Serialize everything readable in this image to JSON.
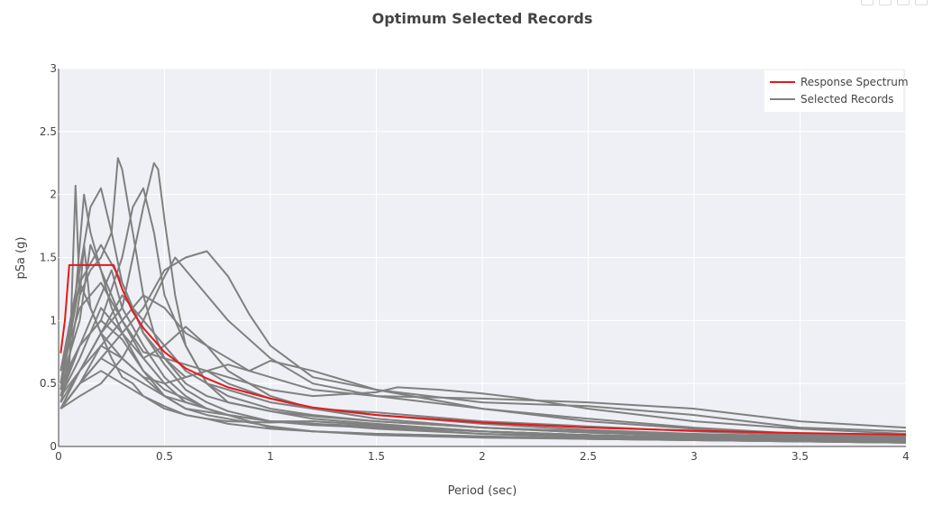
{
  "chart_data": {
    "type": "line",
    "title": "Optimum Selected Records",
    "xlabel": "Period (sec)",
    "ylabel": "pSa (g)",
    "xlim": [
      0,
      4
    ],
    "ylim": [
      0,
      3
    ],
    "xticks": [
      0,
      0.5,
      1,
      1.5,
      2,
      2.5,
      3,
      3.5,
      4
    ],
    "xtick_labels": [
      "0",
      "0.5",
      "1",
      "1.5",
      "2",
      "2.5",
      "3",
      "3.5",
      "4"
    ],
    "yticks": [
      0,
      0.5,
      1,
      1.5,
      2,
      2.5,
      3
    ],
    "ytick_labels": [
      "0",
      "0.5",
      "1",
      "1.5",
      "2",
      "2.5",
      "3"
    ],
    "grid": true,
    "legend_position": "top-right",
    "legend": [
      {
        "name": "Response Spectrum",
        "color": "#e31a1c"
      },
      {
        "name": "Selected Records",
        "color": "#808080"
      }
    ],
    "colors": {
      "response": "#e31a1c",
      "records": "#808080",
      "plot_bg": "#eff0f5",
      "grid": "#ffffff"
    },
    "response_spectrum": {
      "x": [
        0.01,
        0.03,
        0.05,
        0.1,
        0.15,
        0.2,
        0.26,
        0.3,
        0.35,
        0.4,
        0.5,
        0.6,
        0.7,
        0.8,
        1.0,
        1.2,
        1.5,
        2.0,
        2.5,
        3.0,
        3.5,
        4.0
      ],
      "y": [
        0.74,
        1.0,
        1.44,
        1.44,
        1.44,
        1.44,
        1.44,
        1.25,
        1.07,
        0.94,
        0.75,
        0.62,
        0.54,
        0.47,
        0.38,
        0.31,
        0.25,
        0.19,
        0.15,
        0.125,
        0.107,
        0.094
      ]
    },
    "records": [
      {
        "x": [
          0.01,
          0.05,
          0.08,
          0.1,
          0.12,
          0.15,
          0.2,
          0.25,
          0.3,
          0.35,
          0.4,
          0.5,
          0.6,
          0.7,
          0.8,
          1.0,
          1.2,
          1.5,
          2.0,
          2.5,
          3.0,
          3.5,
          4.0
        ],
        "y": [
          0.35,
          0.6,
          2.07,
          1.2,
          1.6,
          1.1,
          0.9,
          0.7,
          0.55,
          0.5,
          0.4,
          0.32,
          0.25,
          0.22,
          0.18,
          0.14,
          0.12,
          0.09,
          0.07,
          0.06,
          0.05,
          0.04,
          0.03
        ]
      },
      {
        "x": [
          0.01,
          0.05,
          0.1,
          0.15,
          0.2,
          0.25,
          0.28,
          0.3,
          0.35,
          0.4,
          0.45,
          0.5,
          0.6,
          0.7,
          0.8,
          1.0,
          1.2,
          1.5,
          2.0,
          2.5,
          3.0,
          3.5,
          4.0
        ],
        "y": [
          0.4,
          0.7,
          1.2,
          1.4,
          1.5,
          1.7,
          2.29,
          2.2,
          1.7,
          1.2,
          0.9,
          0.7,
          0.5,
          0.4,
          0.35,
          0.28,
          0.22,
          0.18,
          0.12,
          0.09,
          0.07,
          0.06,
          0.05
        ]
      },
      {
        "x": [
          0.01,
          0.1,
          0.2,
          0.3,
          0.35,
          0.4,
          0.45,
          0.47,
          0.5,
          0.55,
          0.6,
          0.7,
          0.8,
          1.0,
          1.2,
          1.5,
          2.0,
          2.5,
          3.0,
          3.5,
          4.0
        ],
        "y": [
          0.3,
          0.6,
          0.9,
          1.1,
          1.5,
          1.9,
          2.25,
          2.2,
          1.8,
          1.2,
          0.8,
          0.5,
          0.4,
          0.3,
          0.25,
          0.2,
          0.15,
          0.12,
          0.09,
          0.07,
          0.06
        ]
      },
      {
        "x": [
          0.01,
          0.1,
          0.2,
          0.3,
          0.4,
          0.5,
          0.6,
          0.7,
          0.8,
          0.9,
          1.0,
          1.2,
          1.5,
          2.0,
          2.5,
          3.0,
          3.5,
          4.0
        ],
        "y": [
          0.3,
          0.5,
          0.7,
          0.9,
          1.1,
          1.4,
          1.5,
          1.55,
          1.35,
          1.05,
          0.8,
          0.55,
          0.45,
          0.35,
          0.32,
          0.25,
          0.15,
          0.12
        ]
      },
      {
        "x": [
          0.01,
          0.1,
          0.2,
          0.3,
          0.4,
          0.5,
          0.55,
          0.6,
          0.7,
          0.8,
          1.0,
          1.2,
          1.5,
          2.0,
          2.5,
          3.0,
          3.5,
          4.0
        ],
        "y": [
          0.3,
          0.4,
          0.5,
          0.7,
          1.0,
          1.35,
          1.5,
          1.4,
          1.2,
          1.0,
          0.7,
          0.5,
          0.4,
          0.3,
          0.22,
          0.15,
          0.1,
          0.08
        ]
      },
      {
        "x": [
          0.01,
          0.1,
          0.2,
          0.3,
          0.4,
          0.5,
          0.6,
          0.7,
          0.8,
          1.0,
          1.2,
          1.5,
          1.6,
          1.8,
          2.0,
          2.2,
          2.5,
          3.0,
          3.5,
          4.0
        ],
        "y": [
          0.35,
          0.6,
          0.8,
          0.7,
          0.55,
          0.5,
          0.55,
          0.6,
          0.55,
          0.45,
          0.4,
          0.43,
          0.47,
          0.45,
          0.42,
          0.38,
          0.3,
          0.2,
          0.14,
          0.1
        ]
      },
      {
        "x": [
          0.01,
          0.1,
          0.2,
          0.3,
          0.4,
          0.5,
          0.6,
          0.7,
          0.8,
          1.0,
          1.2,
          1.5,
          2.0,
          2.5,
          3.0,
          3.5,
          4.0
        ],
        "y": [
          0.45,
          1.3,
          1.6,
          1.3,
          0.9,
          0.7,
          0.55,
          0.6,
          0.65,
          0.55,
          0.45,
          0.4,
          0.38,
          0.35,
          0.3,
          0.2,
          0.15
        ]
      },
      {
        "x": [
          0.01,
          0.08,
          0.12,
          0.15,
          0.2,
          0.25,
          0.3,
          0.4,
          0.5,
          0.6,
          0.7,
          0.8,
          1.0,
          1.2,
          1.5,
          2.0,
          2.5,
          3.0,
          3.5,
          4.0
        ],
        "y": [
          0.5,
          1.2,
          2.0,
          1.7,
          1.4,
          1.1,
          0.9,
          0.6,
          0.45,
          0.38,
          0.3,
          0.25,
          0.2,
          0.18,
          0.14,
          0.1,
          0.08,
          0.06,
          0.05,
          0.04
        ]
      },
      {
        "x": [
          0.01,
          0.1,
          0.15,
          0.2,
          0.25,
          0.3,
          0.4,
          0.5,
          0.6,
          0.7,
          0.8,
          1.0,
          1.2,
          1.5,
          2.0,
          2.5,
          3.0,
          3.5,
          4.0
        ],
        "y": [
          0.6,
          1.4,
          1.9,
          2.05,
          1.7,
          1.3,
          0.9,
          0.65,
          0.45,
          0.35,
          0.28,
          0.2,
          0.17,
          0.15,
          0.12,
          0.09,
          0.07,
          0.05,
          0.04
        ]
      },
      {
        "x": [
          0.01,
          0.05,
          0.1,
          0.15,
          0.2,
          0.3,
          0.4,
          0.5,
          0.6,
          0.7,
          0.8,
          1.0,
          1.2,
          1.5,
          2.0,
          2.5,
          3.0,
          3.5,
          4.0
        ],
        "y": [
          0.5,
          0.9,
          1.3,
          1.1,
          0.9,
          0.7,
          0.55,
          0.4,
          0.35,
          0.3,
          0.25,
          0.2,
          0.2,
          0.17,
          0.12,
          0.09,
          0.07,
          0.05,
          0.04
        ]
      },
      {
        "x": [
          0.01,
          0.1,
          0.2,
          0.3,
          0.35,
          0.4,
          0.45,
          0.5,
          0.6,
          0.7,
          0.8,
          1.0,
          1.2,
          1.5,
          2.0,
          2.5,
          3.0,
          3.5,
          4.0
        ],
        "y": [
          0.4,
          0.8,
          1.0,
          1.5,
          1.9,
          2.05,
          1.7,
          1.2,
          0.8,
          0.5,
          0.35,
          0.28,
          0.24,
          0.2,
          0.15,
          0.11,
          0.09,
          0.07,
          0.05
        ]
      },
      {
        "x": [
          0.01,
          0.1,
          0.2,
          0.3,
          0.4,
          0.5,
          0.6,
          0.7,
          0.8,
          0.9,
          1.0,
          1.2,
          1.5,
          2.0,
          2.5,
          3.0,
          3.5,
          4.0
        ],
        "y": [
          0.3,
          0.5,
          0.8,
          1.0,
          1.2,
          1.1,
          0.9,
          0.8,
          0.7,
          0.6,
          0.68,
          0.6,
          0.45,
          0.3,
          0.2,
          0.14,
          0.1,
          0.08
        ]
      },
      {
        "x": [
          0.01,
          0.1,
          0.2,
          0.3,
          0.4,
          0.5,
          0.6,
          0.7,
          0.8,
          1.0,
          1.2,
          1.5,
          2.0,
          2.5,
          3.0,
          3.5,
          4.0
        ],
        "y": [
          0.4,
          0.7,
          1.1,
          0.9,
          0.7,
          0.8,
          0.95,
          0.8,
          0.6,
          0.4,
          0.3,
          0.25,
          0.18,
          0.13,
          0.1,
          0.08,
          0.06
        ]
      },
      {
        "x": [
          0.01,
          0.1,
          0.2,
          0.25,
          0.3,
          0.4,
          0.5,
          0.6,
          0.7,
          0.8,
          1.0,
          1.2,
          1.5,
          2.0,
          2.5,
          3.0,
          3.5,
          4.0
        ],
        "y": [
          0.45,
          0.8,
          1.2,
          1.4,
          1.1,
          0.8,
          0.55,
          0.4,
          0.3,
          0.25,
          0.2,
          0.18,
          0.15,
          0.1,
          0.07,
          0.05,
          0.04,
          0.03
        ]
      },
      {
        "x": [
          0.01,
          0.1,
          0.2,
          0.3,
          0.4,
          0.5,
          0.6,
          0.7,
          0.8,
          1.0,
          1.2,
          1.5,
          2.0,
          2.5,
          3.0,
          3.5,
          4.0
        ],
        "y": [
          0.3,
          0.5,
          0.6,
          0.5,
          0.4,
          0.3,
          0.25,
          0.22,
          0.2,
          0.19,
          0.2,
          0.17,
          0.12,
          0.08,
          0.06,
          0.05,
          0.04
        ]
      },
      {
        "x": [
          0.01,
          0.1,
          0.15,
          0.2,
          0.3,
          0.4,
          0.5,
          0.6,
          0.7,
          0.8,
          1.0,
          1.2,
          1.5,
          2.0,
          2.5,
          3.0,
          3.5,
          4.0
        ],
        "y": [
          0.5,
          1.0,
          1.6,
          1.4,
          1.0,
          0.7,
          0.5,
          0.35,
          0.3,
          0.25,
          0.15,
          0.12,
          0.1,
          0.08,
          0.06,
          0.05,
          0.04,
          0.03
        ]
      },
      {
        "x": [
          0.01,
          0.1,
          0.2,
          0.3,
          0.4,
          0.5,
          0.6,
          0.7,
          0.8,
          1.0,
          1.2,
          1.5,
          2.0,
          2.5,
          3.0,
          3.5,
          4.0
        ],
        "y": [
          0.4,
          0.6,
          0.9,
          1.2,
          1.0,
          0.8,
          0.6,
          0.5,
          0.45,
          0.35,
          0.3,
          0.27,
          0.2,
          0.16,
          0.12,
          0.09,
          0.07
        ]
      },
      {
        "x": [
          0.01,
          0.1,
          0.2,
          0.3,
          0.4,
          0.5,
          0.6,
          0.7,
          0.8,
          1.0,
          1.2,
          1.5,
          2.0,
          2.5,
          3.0,
          3.5,
          4.0
        ],
        "y": [
          0.5,
          0.8,
          1.0,
          0.85,
          0.6,
          0.4,
          0.3,
          0.25,
          0.22,
          0.16,
          0.12,
          0.1,
          0.08,
          0.06,
          0.05,
          0.04,
          0.03
        ]
      },
      {
        "x": [
          0.01,
          0.1,
          0.2,
          0.3,
          0.4,
          0.5,
          0.6,
          0.7,
          0.8,
          1.0,
          1.2,
          1.5,
          2.0,
          2.5,
          3.0,
          3.5,
          4.0
        ],
        "y": [
          0.6,
          1.1,
          1.3,
          1.0,
          0.75,
          0.7,
          0.65,
          0.6,
          0.5,
          0.38,
          0.3,
          0.22,
          0.15,
          0.11,
          0.08,
          0.06,
          0.05
        ]
      },
      {
        "x": [
          0.01,
          0.1,
          0.2,
          0.3,
          0.4,
          0.5,
          0.6,
          0.8,
          1.0,
          1.2,
          1.5,
          2.0,
          2.5,
          3.0,
          3.5,
          4.0
        ],
        "y": [
          0.3,
          0.5,
          0.7,
          0.6,
          0.5,
          0.4,
          0.3,
          0.25,
          0.2,
          0.18,
          0.16,
          0.12,
          0.09,
          0.07,
          0.05,
          0.04
        ]
      }
    ]
  }
}
